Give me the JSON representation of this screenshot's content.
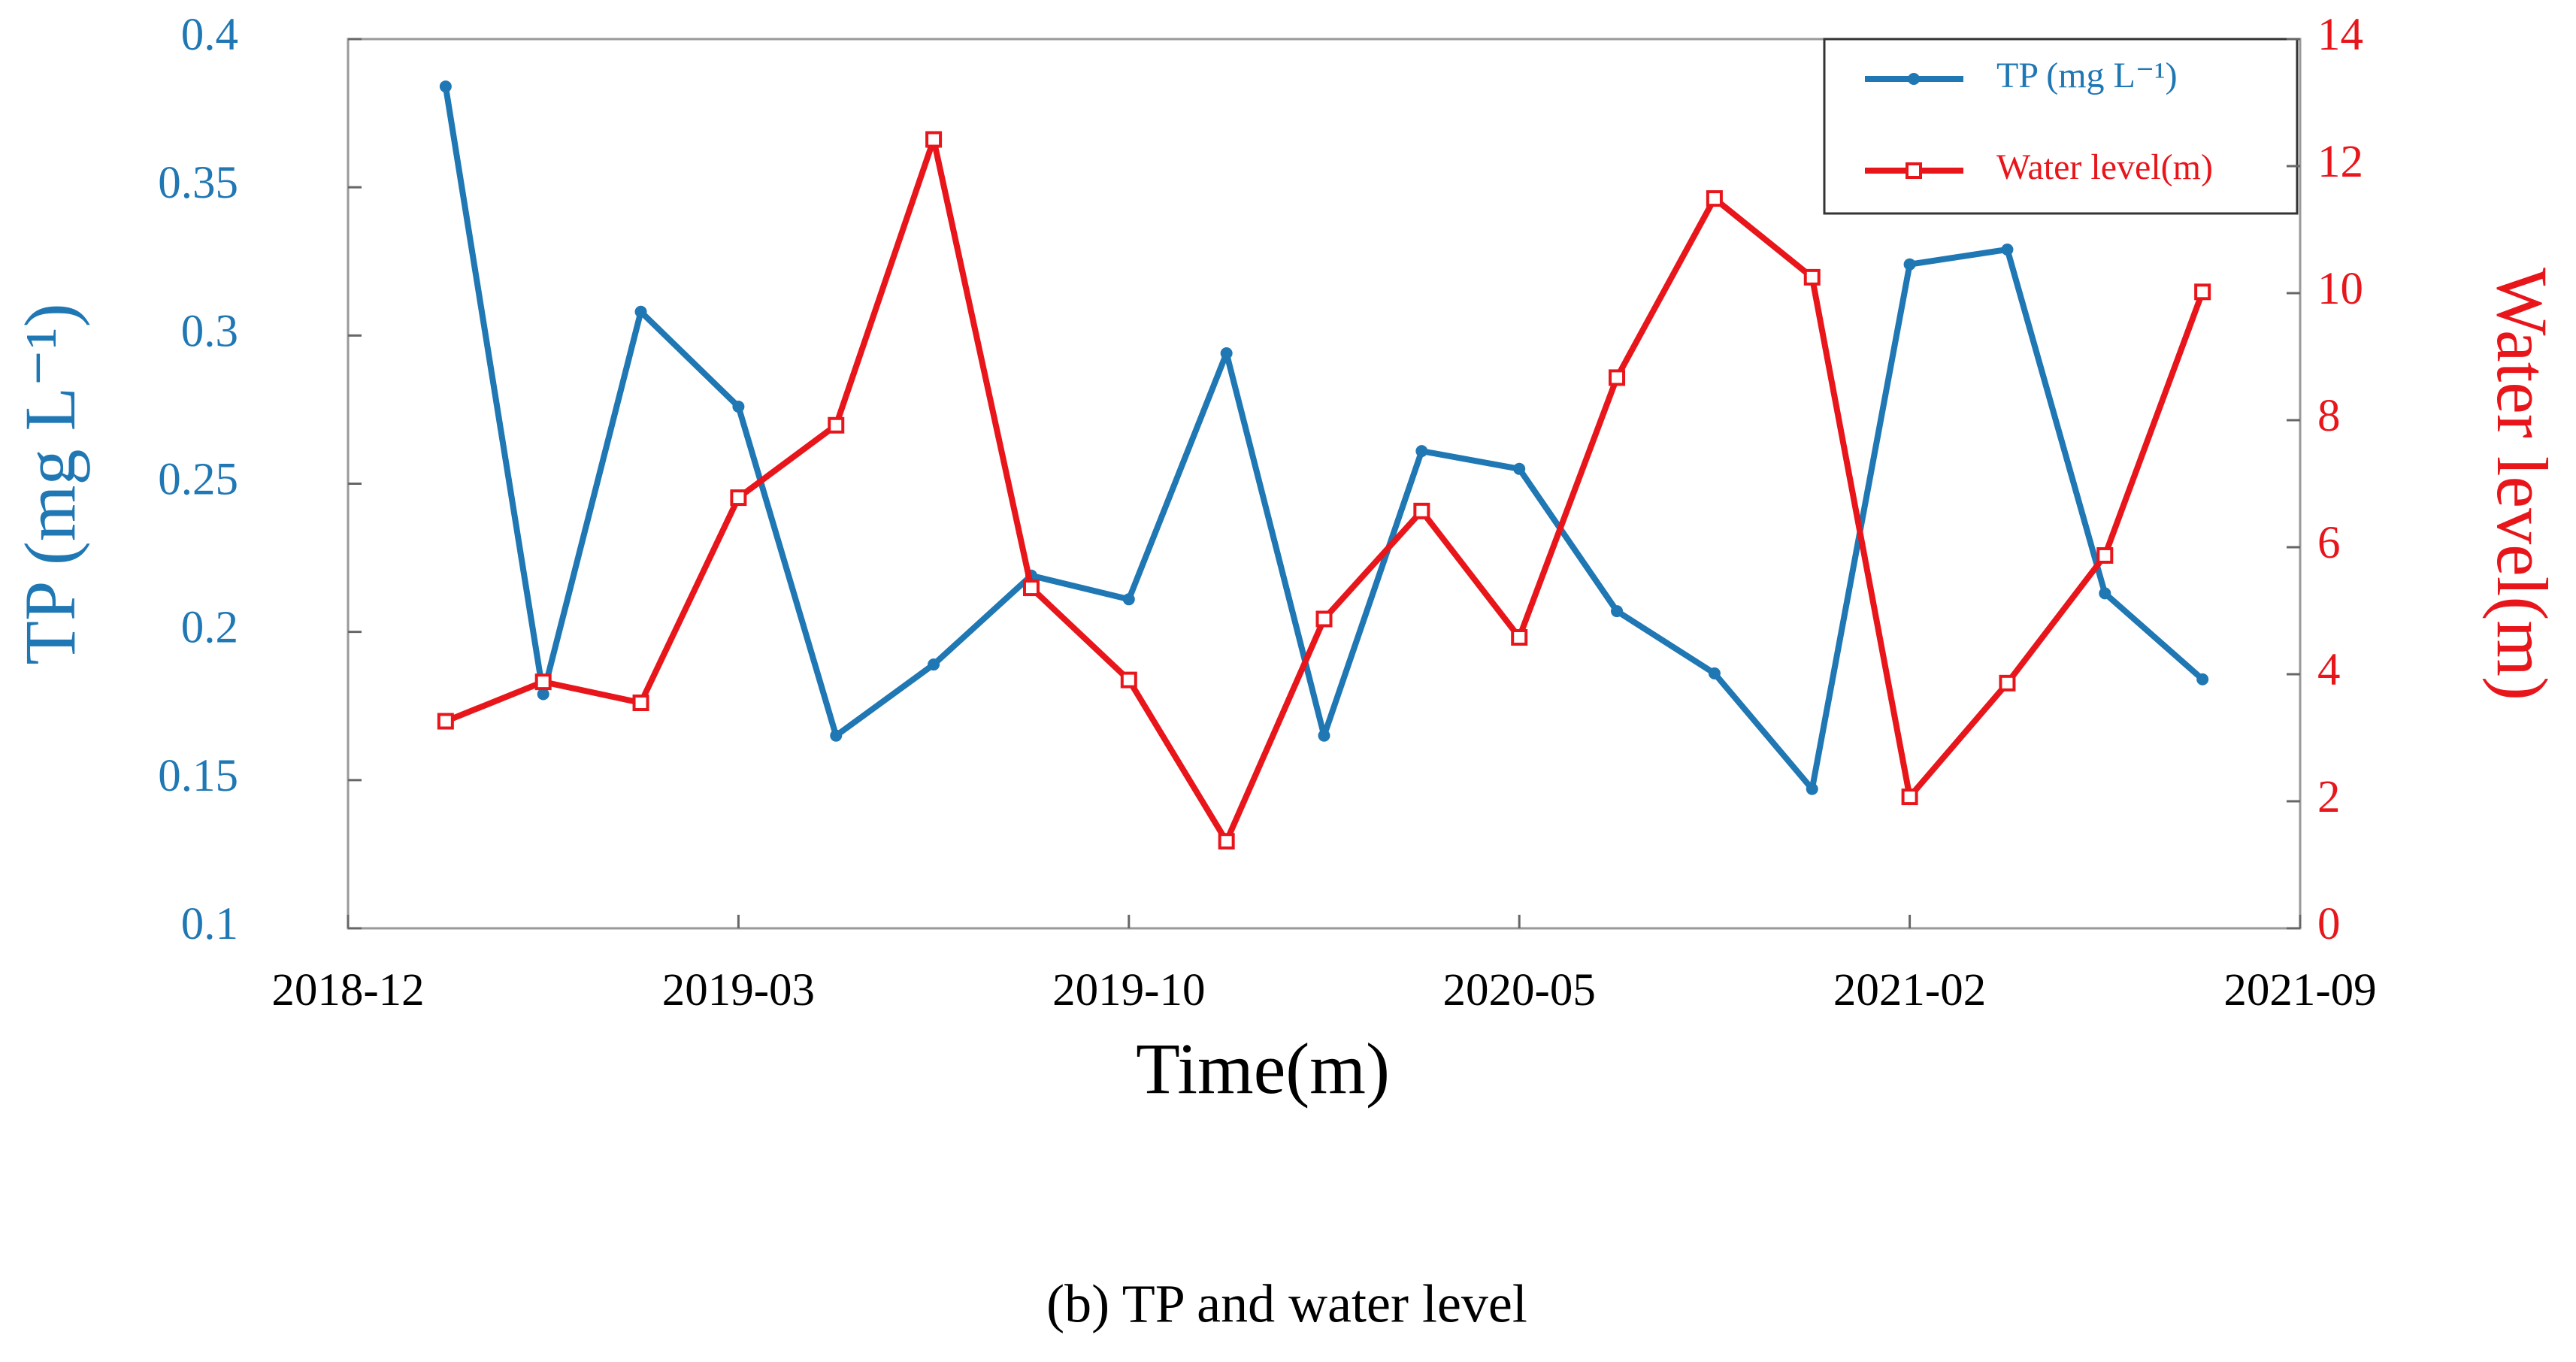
{
  "chart_data": {
    "type": "line",
    "x": [
      1,
      2,
      3,
      4,
      5,
      6,
      7,
      8,
      9,
      10,
      11,
      12,
      13,
      14,
      15,
      16,
      17,
      18,
      19
    ],
    "xlim": [
      0,
      20
    ],
    "xticks": [
      {
        "value": 0,
        "label": "2018-12"
      },
      {
        "value": 4,
        "label": "2019-03"
      },
      {
        "value": 8,
        "label": "2019-10"
      },
      {
        "value": 12,
        "label": "2020-05"
      },
      {
        "value": 16,
        "label": "2021-02"
      },
      {
        "value": 20,
        "label": "2021-09"
      }
    ],
    "xlabel": "Time(m)",
    "ylabel": "TP (mg L⁻¹)",
    "y2label": "Water level(m)",
    "ylim": [
      0.1,
      0.4
    ],
    "yticks": [
      0.1,
      0.15,
      0.2,
      0.25,
      0.3,
      0.35,
      0.4
    ],
    "y2lim": [
      0,
      14
    ],
    "y2ticks": [
      0,
      2,
      4,
      6,
      8,
      10,
      12,
      14
    ],
    "legend": "upper right",
    "series": [
      {
        "name": "TP (mg L⁻¹)",
        "color": "#1f77b4",
        "marker": "circle",
        "values": [
          0.384,
          0.179,
          0.308,
          0.276,
          0.165,
          0.189,
          0.219,
          0.211,
          0.294,
          0.165,
          0.261,
          0.255,
          0.207,
          0.186,
          0.147,
          0.324,
          0.329,
          0.213,
          0.184
        ]
      },
      {
        "name": "Water level(m)",
        "color": "#e8161b",
        "marker": "square",
        "axis": "y2",
        "values": [
          3.26,
          3.88,
          3.55,
          6.78,
          7.92,
          12.42,
          5.36,
          3.91,
          1.37,
          4.87,
          6.57,
          4.58,
          8.67,
          11.49,
          10.25,
          2.07,
          3.86,
          5.87,
          10.02
        ]
      }
    ],
    "caption": "(b) TP and water level"
  }
}
